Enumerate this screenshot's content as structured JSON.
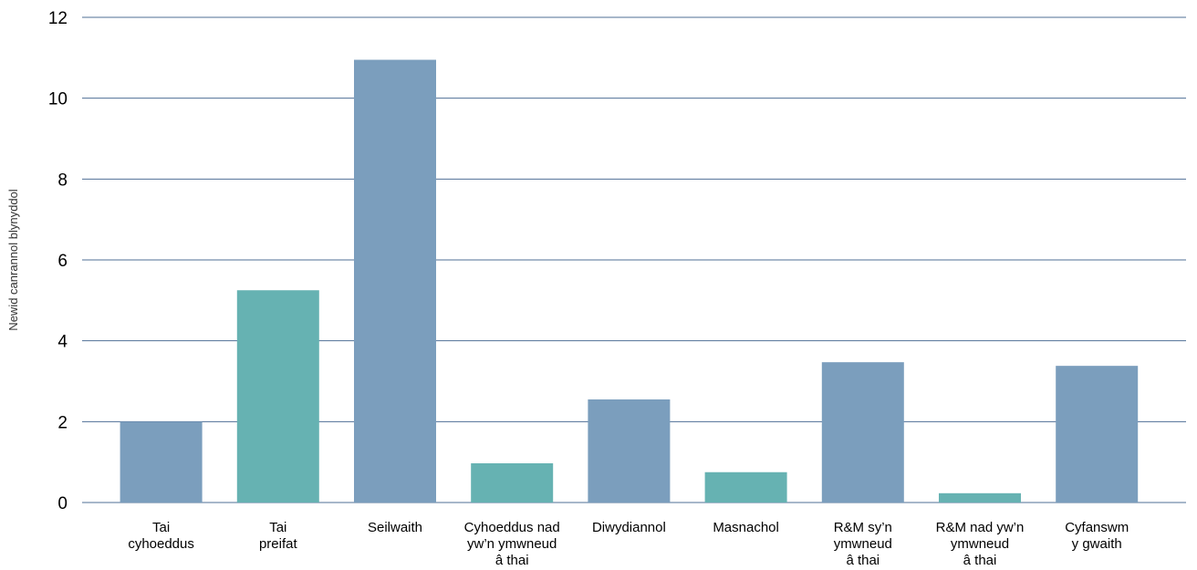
{
  "chart_data": {
    "type": "bar",
    "title": "",
    "xlabel": "",
    "ylabel": "Newid canrannol blynyddol",
    "ylim": [
      0,
      12
    ],
    "yticks": [
      0,
      2,
      4,
      6,
      8,
      10,
      12
    ],
    "grid": true,
    "legend": "none",
    "categories": [
      [
        "Tai",
        "cyhoeddus"
      ],
      [
        "Tai",
        "preifat"
      ],
      [
        "Seilwaith"
      ],
      [
        "Cyhoeddus nad",
        "yw’n ymwneud",
        "â thai"
      ],
      [
        "Diwydiannol"
      ],
      [
        "Masnachol"
      ],
      [
        "R&M sy’n",
        "ymwneud",
        "â thai"
      ],
      [
        "R&M nad yw’n",
        "ymwneud",
        "â thai"
      ],
      [
        "Cyfanswm",
        "y gwaith"
      ]
    ],
    "values": [
      2.0,
      5.25,
      10.95,
      0.97,
      2.55,
      0.75,
      3.47,
      0.23,
      3.38
    ],
    "bar_colors": [
      "#7b9ebd",
      "#66b2b2",
      "#7b9ebd",
      "#66b2b2",
      "#7b9ebd",
      "#66b2b2",
      "#7b9ebd",
      "#66b2b2",
      "#7b9ebd"
    ],
    "gridline_color": "#4f6f96"
  }
}
